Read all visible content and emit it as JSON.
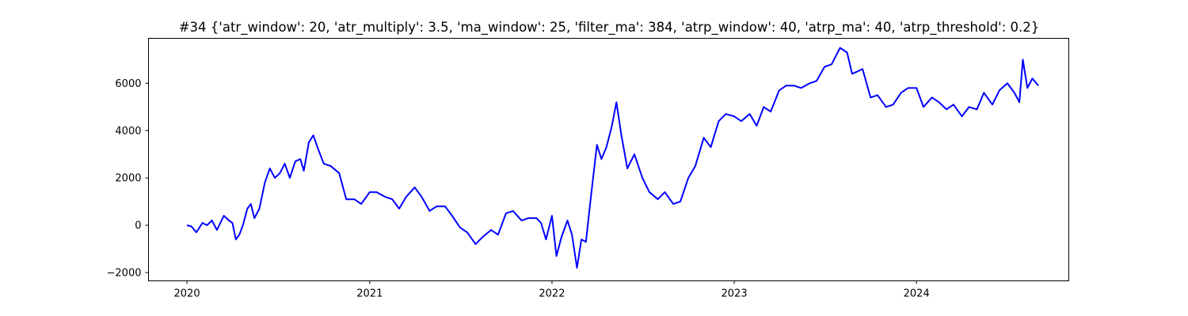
{
  "chart_data": {
    "type": "line",
    "title": "#34 {'atr_window': 20, 'atr_multiply': 3.5, 'ma_window': 25, 'filter_ma': 384, 'atrp_window': 40, 'atrp_ma': 40, 'atrp_threshold': 0.2}",
    "xlabel": "",
    "ylabel": "",
    "xlim": [
      "2019-10-16",
      "2024-11-01"
    ],
    "ylim": [
      -2350,
      7900
    ],
    "x_ticks": [
      "2020-01-01",
      "2021-01-01",
      "2022-01-01",
      "2023-01-01",
      "2024-01-01"
    ],
    "x_tick_labels": [
      "2020",
      "2021",
      "2022",
      "2023",
      "2024"
    ],
    "y_ticks": [
      -2000,
      0,
      2000,
      4000,
      6000
    ],
    "y_tick_labels": [
      "−2000",
      "0",
      "2000",
      "4000",
      "6000"
    ],
    "grid": false,
    "legend": "none",
    "color": "#0000ff",
    "series": [
      {
        "x": [
          "2020-01-01",
          "2020-01-10",
          "2020-01-20",
          "2020-02-01",
          "2020-02-10",
          "2020-02-20",
          "2020-03-01",
          "2020-03-15",
          "2020-03-25",
          "2020-04-01",
          "2020-04-08",
          "2020-04-15",
          "2020-04-22",
          "2020-05-01",
          "2020-05-08",
          "2020-05-15",
          "2020-05-25",
          "2020-06-05",
          "2020-06-15",
          "2020-06-25",
          "2020-07-05",
          "2020-07-15",
          "2020-07-25",
          "2020-08-05",
          "2020-08-15",
          "2020-08-22",
          "2020-09-01",
          "2020-09-10",
          "2020-09-20",
          "2020-10-01",
          "2020-10-15",
          "2020-11-01",
          "2020-11-15",
          "2020-12-01",
          "2020-12-15",
          "2021-01-01",
          "2021-01-15",
          "2021-02-01",
          "2021-02-15",
          "2021-03-01",
          "2021-03-15",
          "2021-04-01",
          "2021-04-15",
          "2021-05-01",
          "2021-05-15",
          "2021-06-01",
          "2021-06-15",
          "2021-07-01",
          "2021-07-15",
          "2021-08-01",
          "2021-08-15",
          "2021-09-01",
          "2021-09-15",
          "2021-10-01",
          "2021-10-15",
          "2021-11-01",
          "2021-11-15",
          "2021-12-01",
          "2021-12-10",
          "2021-12-20",
          "2022-01-01",
          "2022-01-10",
          "2022-01-20",
          "2022-02-01",
          "2022-02-10",
          "2022-02-20",
          "2022-03-01",
          "2022-03-10",
          "2022-03-20",
          "2022-04-01",
          "2022-04-10",
          "2022-04-20",
          "2022-05-01",
          "2022-05-10",
          "2022-05-20",
          "2022-06-01",
          "2022-06-15",
          "2022-07-01",
          "2022-07-15",
          "2022-08-01",
          "2022-08-15",
          "2022-09-01",
          "2022-09-15",
          "2022-10-01",
          "2022-10-15",
          "2022-11-01",
          "2022-11-15",
          "2022-12-01",
          "2022-12-15",
          "2023-01-01",
          "2023-01-15",
          "2023-02-01",
          "2023-02-15",
          "2023-03-01",
          "2023-03-15",
          "2023-04-01",
          "2023-04-15",
          "2023-05-01",
          "2023-05-15",
          "2023-06-01",
          "2023-06-15",
          "2023-07-01",
          "2023-07-15",
          "2023-08-01",
          "2023-08-15",
          "2023-08-25",
          "2023-09-05",
          "2023-09-15",
          "2023-10-01",
          "2023-10-15",
          "2023-11-01",
          "2023-11-15",
          "2023-12-01",
          "2023-12-15",
          "2024-01-01",
          "2024-01-15",
          "2024-02-01",
          "2024-02-15",
          "2024-03-01",
          "2024-03-15",
          "2024-04-01",
          "2024-04-15",
          "2024-05-01",
          "2024-05-15",
          "2024-06-01",
          "2024-06-15",
          "2024-07-01",
          "2024-07-15",
          "2024-07-25",
          "2024-08-01",
          "2024-08-10",
          "2024-08-20",
          "2024-09-01"
        ],
        "y": [
          0,
          -50,
          -300,
          100,
          0,
          200,
          -200,
          400,
          200,
          100,
          -600,
          -400,
          0,
          700,
          900,
          300,
          700,
          1800,
          2400,
          2000,
          2200,
          2600,
          2000,
          2700,
          2800,
          2300,
          3500,
          3800,
          3200,
          2600,
          2500,
          2200,
          1100,
          1100,
          900,
          1400,
          1400,
          1200,
          1100,
          700,
          1200,
          1600,
          1200,
          600,
          800,
          800,
          400,
          -100,
          -300,
          -800,
          -500,
          -200,
          -400,
          500,
          600,
          200,
          300,
          300,
          100,
          -600,
          400,
          -1300,
          -500,
          200,
          -400,
          -1800,
          -600,
          -700,
          1200,
          3400,
          2800,
          3300,
          4200,
          5200,
          3800,
          2400,
          3000,
          2000,
          1400,
          1100,
          1400,
          900,
          1000,
          2000,
          2500,
          3700,
          3300,
          4400,
          4700,
          4600,
          4400,
          4700,
          4200,
          5000,
          4800,
          5700,
          5900,
          5900,
          5800,
          6000,
          6100,
          6700,
          6800,
          7500,
          7300,
          6400,
          6500,
          6600,
          5400,
          5500,
          5000,
          5100,
          5600,
          5800,
          5800,
          5000,
          5400,
          5200,
          4900,
          5100,
          4600,
          5000,
          4900,
          5600,
          5100,
          5700,
          6000,
          5600,
          5200,
          7000,
          5800,
          6200,
          5900
        ]
      }
    ]
  }
}
